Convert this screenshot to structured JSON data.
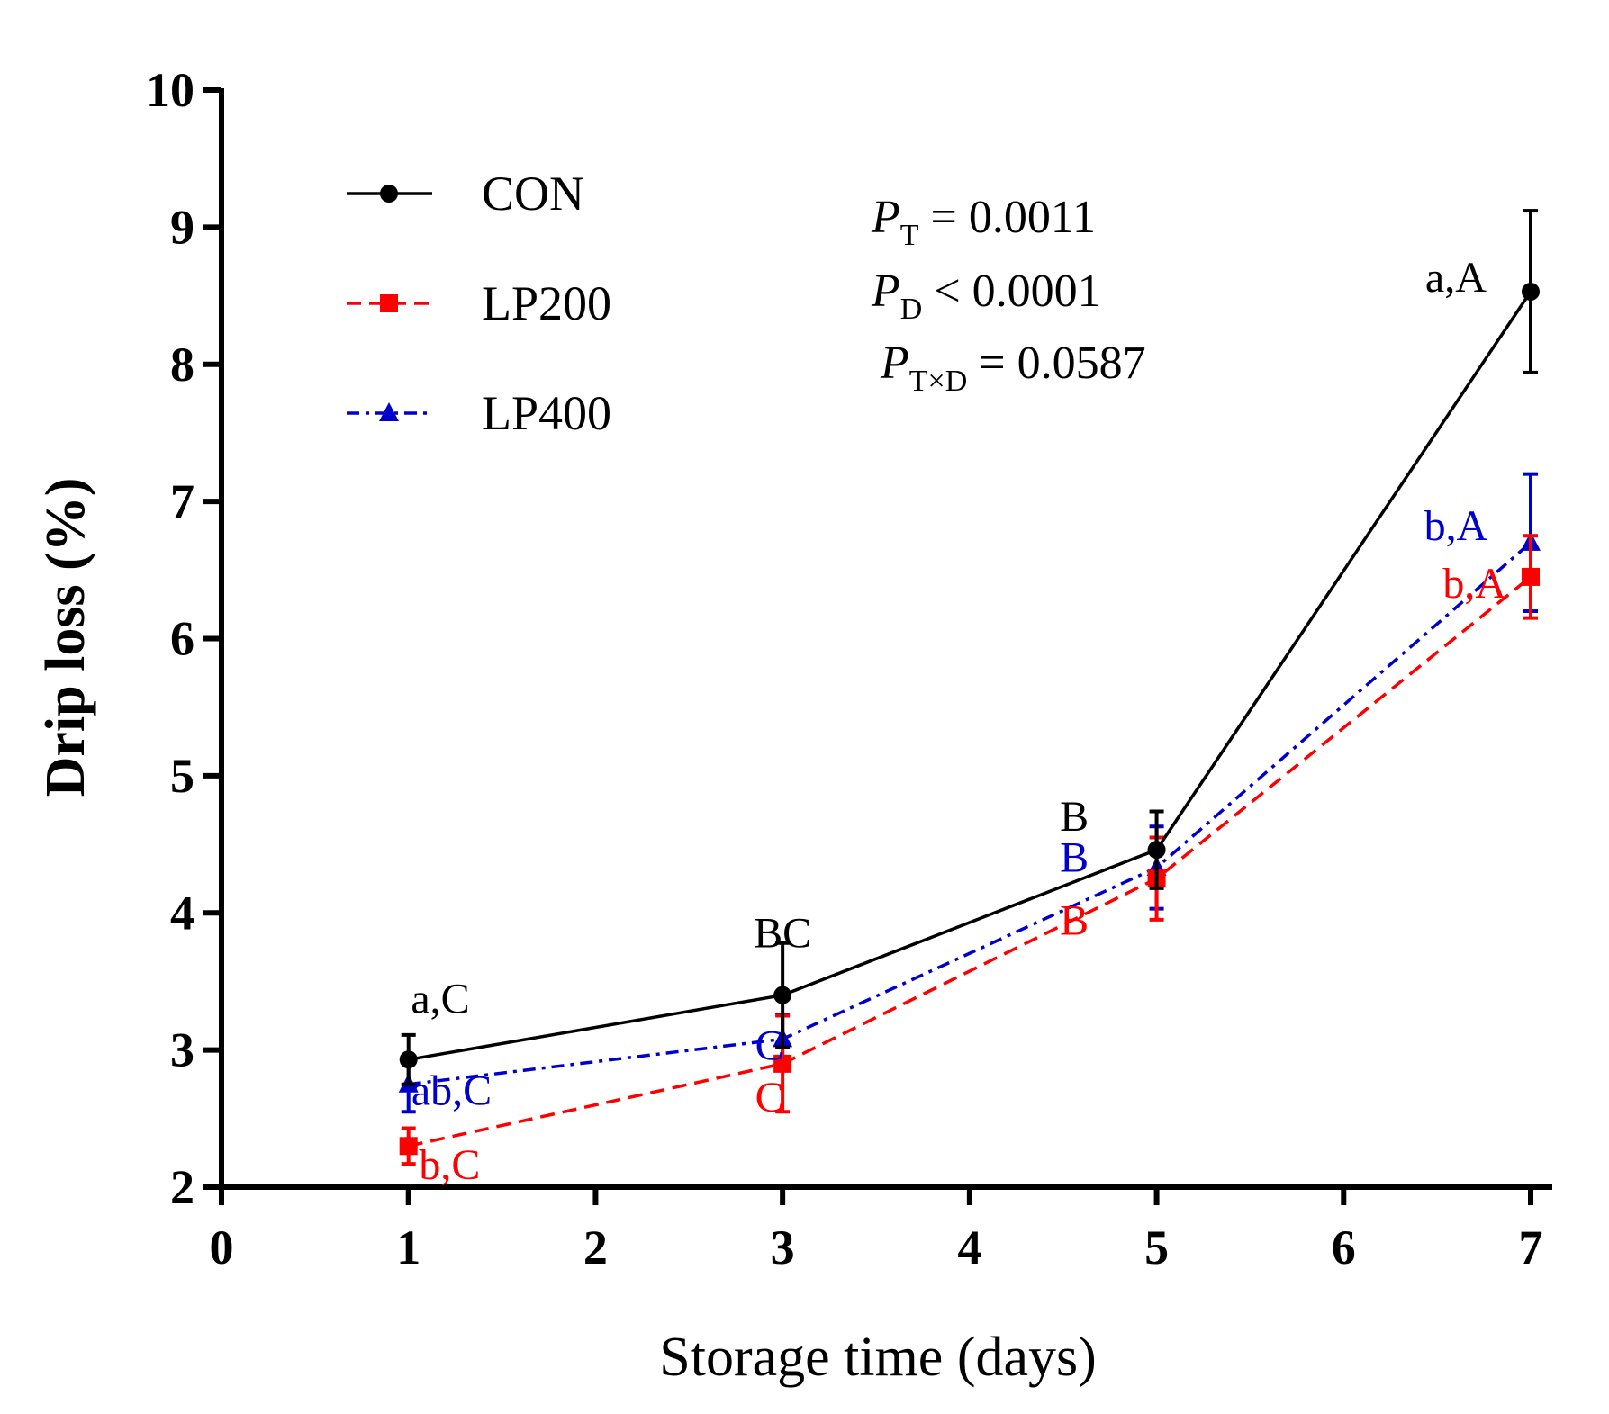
{
  "chart_data": {
    "type": "line",
    "title": "",
    "xlabel": "Storage time (days)",
    "ylabel": "Drip loss (%)",
    "xlim": [
      0,
      7
    ],
    "ylim": [
      2,
      10
    ],
    "xticks": [
      "0",
      "1",
      "2",
      "3",
      "4",
      "5",
      "6",
      "7"
    ],
    "yticks": [
      "2",
      "3",
      "4",
      "5",
      "6",
      "7",
      "8",
      "9",
      "10"
    ],
    "grid": false,
    "legend_position": "top-left",
    "series": [
      {
        "name": "CON",
        "color": "#000000",
        "line_style": "solid",
        "marker": "circle",
        "x": [
          1,
          3,
          5,
          7
        ],
        "y": [
          2.93,
          3.4,
          4.46,
          8.53
        ],
        "error": [
          0.18,
          0.38,
          0.28,
          0.59
        ],
        "labels": [
          "a,C",
          "BC",
          "B",
          "a,A"
        ]
      },
      {
        "name": "LP200",
        "color": "#ff0000",
        "line_style": "dashed",
        "marker": "square",
        "x": [
          1,
          3,
          5,
          7
        ],
        "y": [
          2.3,
          2.9,
          4.25,
          6.45
        ],
        "error": [
          0.13,
          0.35,
          0.3,
          0.3
        ],
        "labels": [
          "b,C",
          "C",
          "B",
          "b,A"
        ]
      },
      {
        "name": "LP400",
        "color": "#0000cc",
        "line_style": "dashdot",
        "marker": "triangle",
        "x": [
          1,
          3,
          5,
          7
        ],
        "y": [
          2.75,
          3.08,
          4.33,
          6.7
        ],
        "error": [
          0.2,
          0.18,
          0.3,
          0.5
        ],
        "labels": [
          "ab,C",
          "C",
          "B",
          "b,A"
        ]
      }
    ],
    "stats": [
      {
        "symbol": "P",
        "subscript": "T",
        "text": " = 0.0011"
      },
      {
        "symbol": "P",
        "subscript": "D",
        "text": " < 0.0001"
      },
      {
        "symbol": "P",
        "subscript": "T×D",
        "text": " = 0.0587"
      }
    ]
  }
}
